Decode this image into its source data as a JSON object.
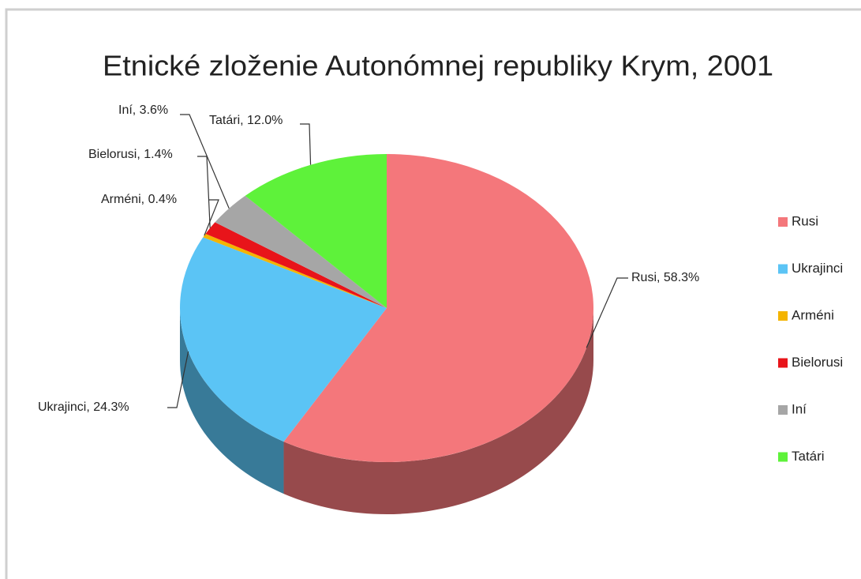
{
  "chart_data": {
    "type": "pie",
    "title": "Etnické zloženie Autonómnej republiky Krym, 2001",
    "categories": [
      "Rusi",
      "Ukrajinci",
      "Arméni",
      "Bielorusi",
      "Iní",
      "Tatári"
    ],
    "values": [
      58.3,
      24.3,
      0.4,
      1.4,
      3.6,
      12.0
    ],
    "value_labels": [
      "Rusi, 58.3%",
      "Ukrajinci, 24.3%",
      "Arméni, 0.4%",
      "Bielorusi, 1.4%",
      "Iní, 3.6%",
      "Tatári, 12.0%"
    ],
    "colors": [
      "#f4777b",
      "#5bc4f5",
      "#f4b400",
      "#e8141a",
      "#a6a6a6",
      "#5ef23a"
    ],
    "legend": "right"
  }
}
